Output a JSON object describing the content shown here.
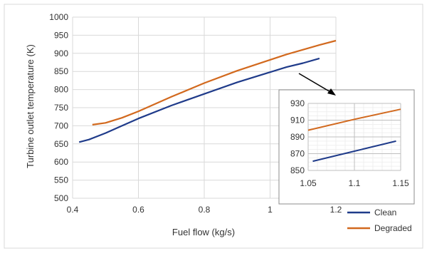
{
  "chart_data": {
    "type": "line",
    "xlabel": "Fuel flow (kg/s)",
    "ylabel": "Turbine outlet temperature (K)",
    "xlim": [
      0.4,
      1.2
    ],
    "ylim": [
      500,
      1000
    ],
    "x_ticks": [
      "0.4",
      "0.6",
      "0.8",
      "1",
      "1.2"
    ],
    "y_ticks": [
      "500",
      "550",
      "600",
      "650",
      "700",
      "750",
      "800",
      "850",
      "900",
      "950",
      "1000"
    ],
    "grid": true,
    "legend_position": "bottom-right",
    "series": [
      {
        "name": "Clean",
        "color": "#1f3b8a",
        "x": [
          0.42,
          0.45,
          0.5,
          0.55,
          0.6,
          0.7,
          0.8,
          0.9,
          1.0,
          1.05,
          1.1,
          1.15
        ],
        "y": [
          655,
          662,
          680,
          700,
          720,
          756,
          788,
          820,
          848,
          862,
          873,
          886
        ]
      },
      {
        "name": "Degraded",
        "color": "#d2691e",
        "x": [
          0.46,
          0.5,
          0.55,
          0.6,
          0.7,
          0.8,
          0.9,
          1.0,
          1.05,
          1.1,
          1.15,
          1.2
        ],
        "y": [
          703,
          708,
          722,
          740,
          780,
          818,
          852,
          882,
          897,
          910,
          923,
          935
        ]
      }
    ],
    "inset": {
      "xlim": [
        1.05,
        1.15
      ],
      "ylim": [
        850,
        930
      ],
      "x_ticks": [
        "1.05",
        "1.1",
        "1.15"
      ],
      "y_ticks": [
        "850",
        "870",
        "890",
        "910",
        "930"
      ],
      "series": [
        {
          "name": "Clean",
          "x": [
            1.055,
            1.1,
            1.145
          ],
          "y": [
            861,
            873,
            885
          ]
        },
        {
          "name": "Degraded",
          "x": [
            1.05,
            1.1,
            1.15
          ],
          "y": [
            898,
            911,
            923
          ]
        }
      ]
    }
  }
}
